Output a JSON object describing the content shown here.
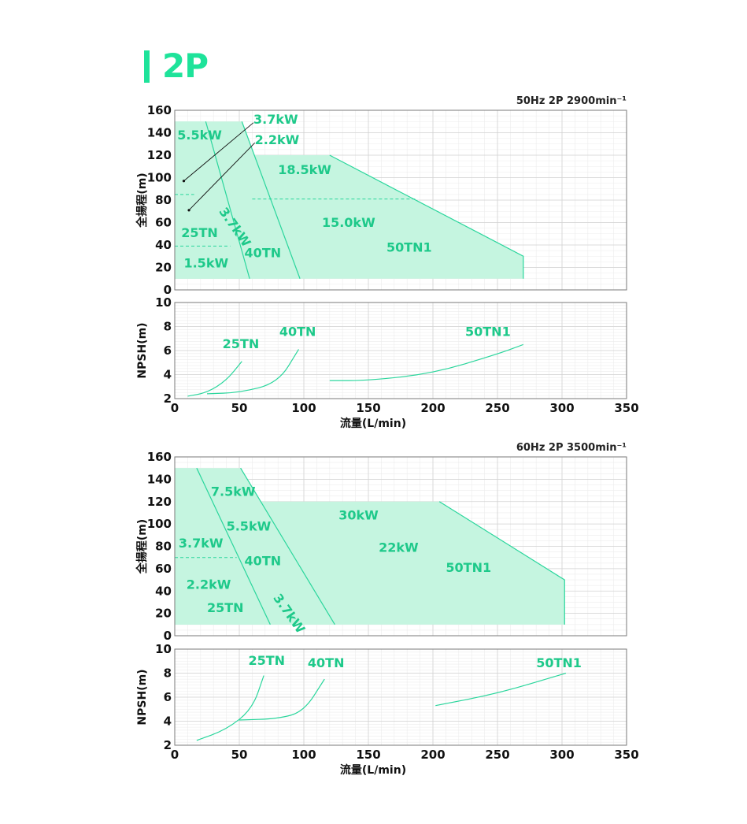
{
  "page": {
    "title": "2P",
    "accent_color": "#1ee39a",
    "fill_color": "#c5f5e0",
    "line_color": "#2ad69c",
    "label_color": "#1ec98a"
  },
  "chart_data": [
    {
      "type": "area",
      "title": "50Hz 2P 2900min⁻¹",
      "xlabel": "",
      "ylabel": "全揚程(m)",
      "xlim": [
        0,
        350
      ],
      "ylim": [
        0,
        160
      ],
      "x_ticks": [
        "0",
        "50",
        "100",
        "150",
        "200",
        "250",
        "300",
        "350"
      ],
      "y_ticks": [
        "0",
        "20",
        "40",
        "60",
        "80",
        "100",
        "120",
        "140",
        "160"
      ],
      "grid": true,
      "regions": [
        {
          "name": "25TN",
          "points": [
            [
              0,
              10
            ],
            [
              58,
              10
            ],
            [
              24,
              150
            ],
            [
              0,
              150
            ]
          ]
        },
        {
          "name": "40TN",
          "points": [
            [
              0,
              10
            ],
            [
              97,
              10
            ],
            [
              52,
              150
            ],
            [
              0,
              150
            ]
          ]
        },
        {
          "name": "50TN1",
          "points": [
            [
              0,
              10
            ],
            [
              270,
              10
            ],
            [
              270,
              30
            ],
            [
              120,
              120
            ],
            [
              0,
              120
            ]
          ]
        }
      ],
      "dividers": [
        {
          "points": [
            [
              0,
              85
            ],
            [
              15,
              85
            ]
          ]
        },
        {
          "points": [
            [
              0,
              39
            ],
            [
              43,
              39
            ]
          ]
        },
        {
          "points": [
            [
              60,
              81
            ],
            [
              187,
              81
            ]
          ]
        }
      ],
      "labels": [
        {
          "text": "3.7kW",
          "x": 61,
          "y": 148
        },
        {
          "text": "2.2kW",
          "x": 62,
          "y": 130
        },
        {
          "text": "5.5kW",
          "x": 2,
          "y": 134
        },
        {
          "text": "18.5kW",
          "x": 80,
          "y": 103
        },
        {
          "text": "3.7kW",
          "x": 34,
          "y": 70,
          "rotate": 55
        },
        {
          "text": "15.0kW",
          "x": 114,
          "y": 56
        },
        {
          "text": "25TN",
          "x": 5,
          "y": 47
        },
        {
          "text": "40TN",
          "x": 54,
          "y": 29
        },
        {
          "text": "50TN1",
          "x": 164,
          "y": 34
        },
        {
          "text": "1.5kW",
          "x": 7,
          "y": 20
        }
      ],
      "leaders": [
        {
          "points": [
            [
              61,
              149
            ],
            [
              7,
              97
            ]
          ]
        },
        {
          "points": [
            [
              62,
              131
            ],
            [
              11,
              71
            ]
          ]
        }
      ]
    },
    {
      "type": "line",
      "title": "",
      "xlabel": "流量(L/min)",
      "ylabel": "NPSH(m)",
      "xlim": [
        0,
        350
      ],
      "ylim": [
        2,
        10
      ],
      "x_ticks": [
        "0",
        "50",
        "100",
        "150",
        "200",
        "250",
        "300",
        "350"
      ],
      "y_ticks": [
        "2",
        "4",
        "6",
        "8",
        "10"
      ],
      "grid": true,
      "series": [
        {
          "name": "25TN",
          "x": [
            10,
            25,
            40,
            52
          ],
          "y": [
            2.2,
            2.5,
            3.5,
            5.1
          ]
        },
        {
          "name": "40TN",
          "x": [
            25,
            50,
            80,
            96
          ],
          "y": [
            2.4,
            2.5,
            3.3,
            6.1
          ]
        },
        {
          "name": "50TN1",
          "x": [
            120,
            150,
            200,
            250,
            270
          ],
          "y": [
            3.5,
            3.5,
            4.1,
            5.7,
            6.5
          ]
        }
      ],
      "series_labels": [
        {
          "text": "25TN",
          "x": 37,
          "y": 6.2
        },
        {
          "text": "40TN",
          "x": 81,
          "y": 7.2
        },
        {
          "text": "50TN1",
          "x": 225,
          "y": 7.2
        }
      ]
    },
    {
      "type": "area",
      "title": "60Hz 2P 3500min⁻¹",
      "xlabel": "",
      "ylabel": "全揚程(m)",
      "xlim": [
        0,
        350
      ],
      "ylim": [
        0,
        160
      ],
      "x_ticks": [
        "0",
        "50",
        "100",
        "150",
        "200",
        "250",
        "300",
        "350"
      ],
      "y_ticks": [
        "0",
        "20",
        "40",
        "60",
        "80",
        "100",
        "120",
        "140",
        "160"
      ],
      "grid": true,
      "regions": [
        {
          "name": "25TN",
          "points": [
            [
              0,
              10
            ],
            [
              74,
              10
            ],
            [
              17,
              150
            ],
            [
              0,
              150
            ]
          ]
        },
        {
          "name": "40TN",
          "points": [
            [
              0,
              10
            ],
            [
              124,
              10
            ],
            [
              51,
              150
            ],
            [
              0,
              150
            ]
          ]
        },
        {
          "name": "50TN1",
          "points": [
            [
              0,
              10
            ],
            [
              302,
              10
            ],
            [
              302,
              50
            ],
            [
              205,
              120
            ],
            [
              0,
              120
            ]
          ]
        }
      ],
      "dividers": [
        {
          "points": [
            [
              0,
              70
            ],
            [
              48,
              70
            ]
          ]
        }
      ],
      "labels": [
        {
          "text": "7.5kW",
          "x": 28,
          "y": 125
        },
        {
          "text": "30kW",
          "x": 127,
          "y": 104
        },
        {
          "text": "5.5kW",
          "x": 40,
          "y": 94
        },
        {
          "text": "3.7kW",
          "x": 3,
          "y": 79
        },
        {
          "text": "22kW",
          "x": 158,
          "y": 75
        },
        {
          "text": "50TN1",
          "x": 210,
          "y": 57
        },
        {
          "text": "40TN",
          "x": 54,
          "y": 63
        },
        {
          "text": "2.2kW",
          "x": 9,
          "y": 42
        },
        {
          "text": "3.7kW",
          "x": 76,
          "y": 34,
          "rotate": 55
        },
        {
          "text": "25TN",
          "x": 25,
          "y": 21
        }
      ]
    },
    {
      "type": "line",
      "title": "",
      "xlabel": "流量(L/min)",
      "ylabel": "NPSH(m)",
      "xlim": [
        0,
        350
      ],
      "ylim": [
        2,
        10
      ],
      "x_ticks": [
        "0",
        "50",
        "100",
        "150",
        "200",
        "250",
        "300",
        "350"
      ],
      "y_ticks": [
        "2",
        "4",
        "6",
        "8",
        "10"
      ],
      "grid": true,
      "series": [
        {
          "name": "25TN",
          "x": [
            17,
            40,
            60,
            69
          ],
          "y": [
            2.4,
            3.3,
            5.0,
            7.8
          ]
        },
        {
          "name": "40TN",
          "x": [
            50,
            80,
            100,
            116
          ],
          "y": [
            4.1,
            4.2,
            4.8,
            7.5
          ]
        },
        {
          "name": "50TN1",
          "x": [
            202,
            250,
            300,
            303
          ],
          "y": [
            5.3,
            6.3,
            7.9,
            8.0
          ]
        }
      ],
      "series_labels": [
        {
          "text": "25TN",
          "x": 57,
          "y": 8.7
        },
        {
          "text": "40TN",
          "x": 103,
          "y": 8.5
        },
        {
          "text": "50TN1",
          "x": 280,
          "y": 8.5
        }
      ]
    }
  ]
}
